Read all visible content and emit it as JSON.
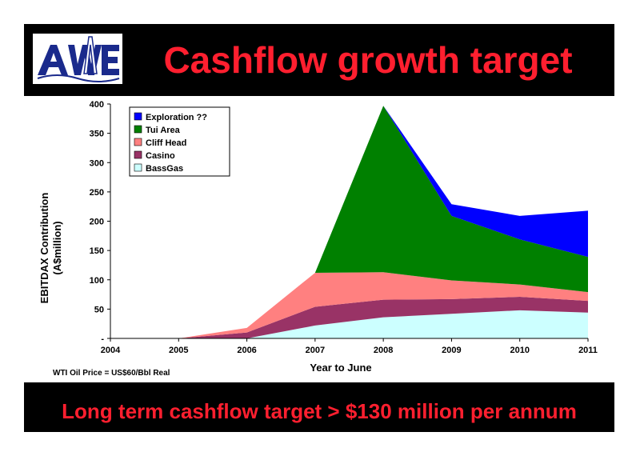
{
  "title": "Cashflow growth target",
  "footer": "Long term cashflow target > $130 million per annum",
  "logo_text": "AWE",
  "note": "WTI Oil Price = US$60/Bbl Real",
  "colors": {
    "background": "#000000",
    "title": "#ff1f2f",
    "panel": "#ffffff"
  },
  "chart_data": {
    "type": "area",
    "stacked": true,
    "xlabel": "Year to June",
    "ylabel": "EBITDAX Contribution (A$million)",
    "ylabel_lines": [
      "EBITDAX Contribution",
      "(A$million)"
    ],
    "x": [
      2004,
      2005,
      2006,
      2007,
      2008,
      2009,
      2010,
      2011
    ],
    "ylim": [
      0,
      400
    ],
    "yticks": [
      0,
      50,
      100,
      150,
      200,
      250,
      300,
      350,
      400
    ],
    "ytick_labels": [
      "-",
      "50",
      "100",
      "150",
      "200",
      "250",
      "300",
      "350",
      "400"
    ],
    "grid": false,
    "legend_position": "top-left",
    "series": [
      {
        "name": "BassGas",
        "color": "#ccffff",
        "values": [
          0,
          0,
          0,
          22,
          36,
          42,
          48,
          44
        ]
      },
      {
        "name": "Casino",
        "color": "#993366",
        "values": [
          0,
          0,
          10,
          32,
          30,
          25,
          23,
          20
        ]
      },
      {
        "name": "Cliff Head",
        "color": "#ff8080",
        "values": [
          0,
          0,
          8,
          58,
          47,
          32,
          21,
          15
        ]
      },
      {
        "name": "Tui Area",
        "color": "#008000",
        "values": [
          0,
          0,
          0,
          0,
          284,
          110,
          77,
          60
        ]
      },
      {
        "name": "Exploration ??",
        "color": "#0000ff",
        "values": [
          0,
          0,
          0,
          0,
          0,
          20,
          40,
          79
        ]
      }
    ]
  }
}
